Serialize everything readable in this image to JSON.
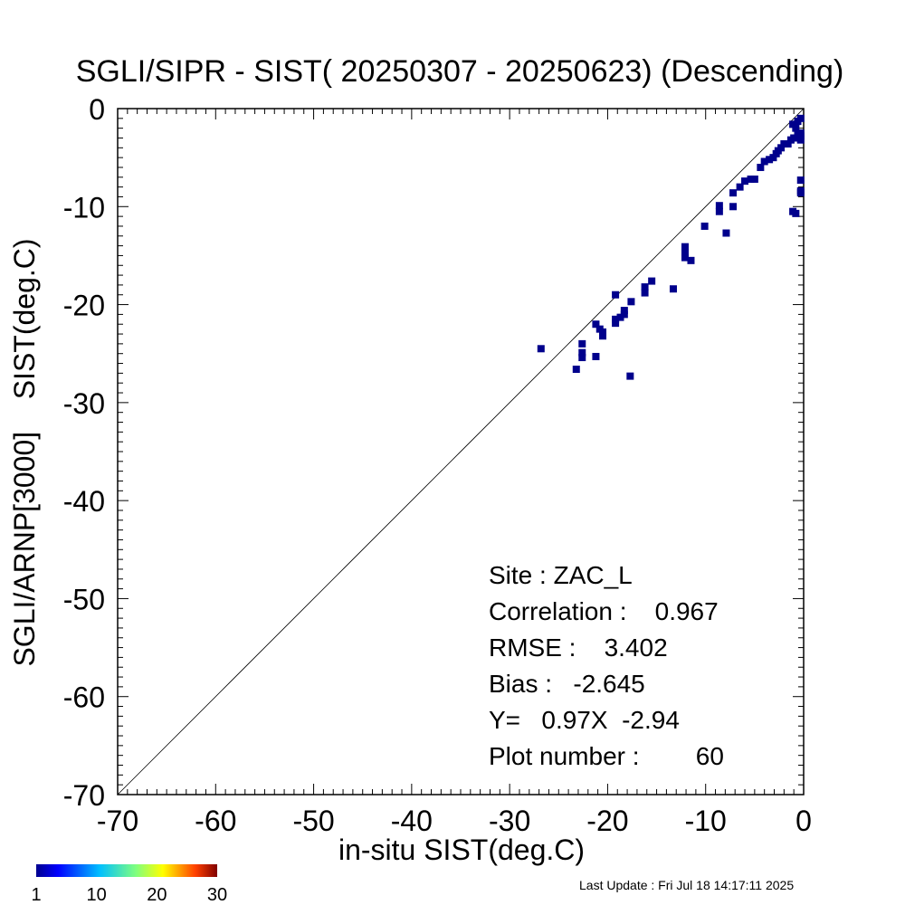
{
  "chart_data": {
    "type": "scatter",
    "title": "SGLI/SIPR - SIST( 20250307 - 20250623) (Descending)",
    "xlabel": "in-situ SIST(deg.C)",
    "ylabel": "SGLI/ARNP[3000]    SIST(deg.C)",
    "xlim": [
      -70,
      0
    ],
    "ylim": [
      -70,
      0
    ],
    "xticks": [
      -70,
      -60,
      -50,
      -40,
      -30,
      -20,
      -10,
      0
    ],
    "yticks": [
      -70,
      -60,
      -50,
      -40,
      -30,
      -20,
      -10,
      0
    ],
    "reference_line": "1:1",
    "point_color": "#00008c",
    "points": [
      [
        -26.8,
        -24.5
      ],
      [
        -23.2,
        -26.6
      ],
      [
        -22.6,
        -24.0
      ],
      [
        -22.6,
        -24.9
      ],
      [
        -22.6,
        -25.4
      ],
      [
        -21.2,
        -25.3
      ],
      [
        -21.2,
        -22.0
      ],
      [
        -20.8,
        -22.5
      ],
      [
        -20.5,
        -22.8
      ],
      [
        -20.5,
        -23.2
      ],
      [
        -17.7,
        -27.3
      ],
      [
        -19.2,
        -19.0
      ],
      [
        -19.2,
        -21.5
      ],
      [
        -19.2,
        -21.9
      ],
      [
        -18.7,
        -21.3
      ],
      [
        -18.3,
        -20.6
      ],
      [
        -18.3,
        -21.0
      ],
      [
        -17.6,
        -19.7
      ],
      [
        -16.2,
        -18.2
      ],
      [
        -16.2,
        -18.8
      ],
      [
        -15.5,
        -17.6
      ],
      [
        -13.3,
        -18.4
      ],
      [
        -12.1,
        -14.1
      ],
      [
        -12.1,
        -14.7
      ],
      [
        -12.1,
        -15.2
      ],
      [
        -11.5,
        -15.5
      ],
      [
        -10.1,
        -12.0
      ],
      [
        -8.6,
        -9.9
      ],
      [
        -8.6,
        -10.5
      ],
      [
        -7.9,
        -12.7
      ],
      [
        -7.2,
        -8.6
      ],
      [
        -7.2,
        -10.0
      ],
      [
        -6.5,
        -8.0
      ],
      [
        -6.0,
        -7.4
      ],
      [
        -5.4,
        -7.2
      ],
      [
        -5.0,
        -7.2
      ],
      [
        -4.4,
        -6.0
      ],
      [
        -4.0,
        -5.4
      ],
      [
        -3.5,
        -5.2
      ],
      [
        -3.1,
        -5.0
      ],
      [
        -2.8,
        -4.6
      ],
      [
        -2.6,
        -4.3
      ],
      [
        -2.3,
        -4.0
      ],
      [
        -2.0,
        -3.6
      ],
      [
        -1.6,
        -3.6
      ],
      [
        -1.3,
        -3.2
      ],
      [
        -1.0,
        -3.0
      ],
      [
        -0.3,
        -2.5
      ],
      [
        -0.3,
        -2.8
      ],
      [
        -0.3,
        -3.2
      ],
      [
        -0.6,
        -2.6
      ],
      [
        -0.3,
        -1.0
      ],
      [
        -0.8,
        -2.0
      ],
      [
        -1.1,
        -1.6
      ],
      [
        -0.3,
        -7.3
      ],
      [
        -0.3,
        -8.6
      ],
      [
        -0.3,
        -8.4
      ],
      [
        -1.1,
        -10.5
      ],
      [
        -0.8,
        -10.7
      ],
      [
        -0.6,
        -1.3
      ]
    ],
    "colorbar": {
      "ticks": [
        1,
        10,
        20,
        30
      ],
      "colors": [
        "#00008f",
        "#0000ff",
        "#00bfff",
        "#7fff7f",
        "#ffff00",
        "#ff4000",
        "#800000"
      ]
    }
  },
  "stats": {
    "site": "Site : ZAC_L",
    "correlation": "Correlation :    0.967",
    "rmse": "RMSE :    3.402",
    "bias": "Bias :   -2.645",
    "regression": "Y=   0.97X  -2.94",
    "plot_number": "Plot number :        60"
  },
  "footer": {
    "last_update": "Last Update : Fri Jul 18 14:17:11 2025"
  }
}
